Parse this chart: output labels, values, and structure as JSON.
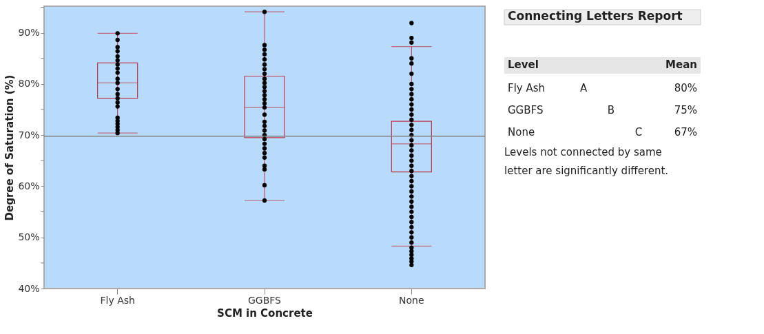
{
  "chart_data": {
    "type": "box",
    "xlabel": "SCM in Concrete",
    "ylabel": "Degree of Saturation (%)",
    "categories": [
      "Fly Ash",
      "GGBFS",
      "None"
    ],
    "boxes": [
      {
        "low": 70.4,
        "q1": 77.2,
        "median": 80.2,
        "q3": 84.1,
        "high": 89.9
      },
      {
        "low": 57.2,
        "q1": 69.5,
        "median": 75.4,
        "q3": 81.5,
        "high": 94.1
      },
      {
        "low": 48.3,
        "q1": 62.8,
        "median": 68.3,
        "q3": 72.7,
        "high": 87.3
      }
    ],
    "color": "#c0394f",
    "series": [
      {
        "type": "scatter",
        "color": "#000000",
        "x": [
          "Fly Ash",
          "Fly Ash",
          "Fly Ash",
          "Fly Ash",
          "Fly Ash",
          "Fly Ash",
          "Fly Ash",
          "Fly Ash",
          "Fly Ash",
          "Fly Ash",
          "Fly Ash",
          "Fly Ash",
          "Fly Ash",
          "Fly Ash",
          "Fly Ash",
          "Fly Ash",
          "Fly Ash",
          "Fly Ash",
          "Fly Ash",
          "Fly Ash",
          "Fly Ash",
          "Fly Ash"
        ],
        "values": [
          70.4,
          71.0,
          71.6,
          72.2,
          72.8,
          73.4,
          75.6,
          76.4,
          77.2,
          78.0,
          79.0,
          80.2,
          81.0,
          82.2,
          83.0,
          83.8,
          84.6,
          85.4,
          86.4,
          87.2,
          88.6,
          89.9
        ]
      },
      {
        "type": "scatter",
        "color": "#000000",
        "x": [
          "GGBFS",
          "GGBFS",
          "GGBFS",
          "GGBFS",
          "GGBFS",
          "GGBFS",
          "GGBFS",
          "GGBFS",
          "GGBFS",
          "GGBFS",
          "GGBFS",
          "GGBFS",
          "GGBFS",
          "GGBFS",
          "GGBFS",
          "GGBFS",
          "GGBFS",
          "GGBFS",
          "GGBFS",
          "GGBFS",
          "GGBFS",
          "GGBFS",
          "GGBFS",
          "GGBFS",
          "GGBFS",
          "GGBFS",
          "GGBFS",
          "GGBFS",
          "GGBFS",
          "GGBFS"
        ],
        "values": [
          57.2,
          60.2,
          63.3,
          64.0,
          65.6,
          66.5,
          67.4,
          68.3,
          69.2,
          70.0,
          70.9,
          71.8,
          72.6,
          74.0,
          75.4,
          76.2,
          77.0,
          77.8,
          78.6,
          79.4,
          80.2,
          81.0,
          82.0,
          82.9,
          83.8,
          84.8,
          85.8,
          86.7,
          87.6,
          94.1
        ]
      },
      {
        "type": "scatter",
        "color": "#000000",
        "x": [
          "None",
          "None",
          "None",
          "None",
          "None",
          "None",
          "None",
          "None",
          "None",
          "None",
          "None",
          "None",
          "None",
          "None",
          "None",
          "None",
          "None",
          "None",
          "None",
          "None",
          "None",
          "None",
          "None",
          "None",
          "None",
          "None",
          "None",
          "None",
          "None",
          "None",
          "None",
          "None",
          "None",
          "None",
          "None",
          "None",
          "None",
          "None",
          "None",
          "None",
          "None",
          "None",
          "None",
          "None"
        ],
        "values": [
          44.6,
          45.3,
          45.9,
          46.6,
          47.3,
          48.0,
          49.0,
          50.0,
          51.0,
          52.0,
          53.0,
          54.0,
          55.0,
          56.0,
          57.0,
          58.0,
          59.0,
          60.0,
          61.0,
          62.0,
          63.0,
          64.0,
          65.0,
          66.0,
          67.0,
          68.0,
          69.0,
          70.0,
          71.0,
          72.0,
          73.0,
          74.0,
          75.0,
          76.0,
          77.0,
          78.0,
          79.0,
          80.0,
          82.0,
          84.0,
          85.0,
          88.1,
          89.0,
          91.9
        ]
      }
    ],
    "ylim": [
      40,
      95.2
    ],
    "yticks": [
      {
        "value": 40,
        "label": "40%"
      },
      {
        "value": 45,
        "label": null
      },
      {
        "value": 50,
        "label": "50%"
      },
      {
        "value": 55,
        "label": null
      },
      {
        "value": 60,
        "label": "60%"
      },
      {
        "value": 65,
        "label": null
      },
      {
        "value": 70,
        "label": "70%"
      },
      {
        "value": 75,
        "label": null
      },
      {
        "value": 80,
        "label": "80%"
      },
      {
        "value": 85,
        "label": null
      },
      {
        "value": 90,
        "label": "90%"
      },
      {
        "value": 95,
        "label": null
      }
    ],
    "ref_lines": [
      {
        "axis": "y",
        "value": 69.8,
        "color": "#808080"
      }
    ],
    "grid": false,
    "annotations": [
      "Connecting Letters Report",
      "Level",
      "Mean",
      "Fly Ash",
      "A",
      "80%",
      "GGBFS",
      "B",
      "75%",
      "None",
      "C",
      "67%",
      "Levels not connected by same",
      "letter are significantly different."
    ]
  }
}
